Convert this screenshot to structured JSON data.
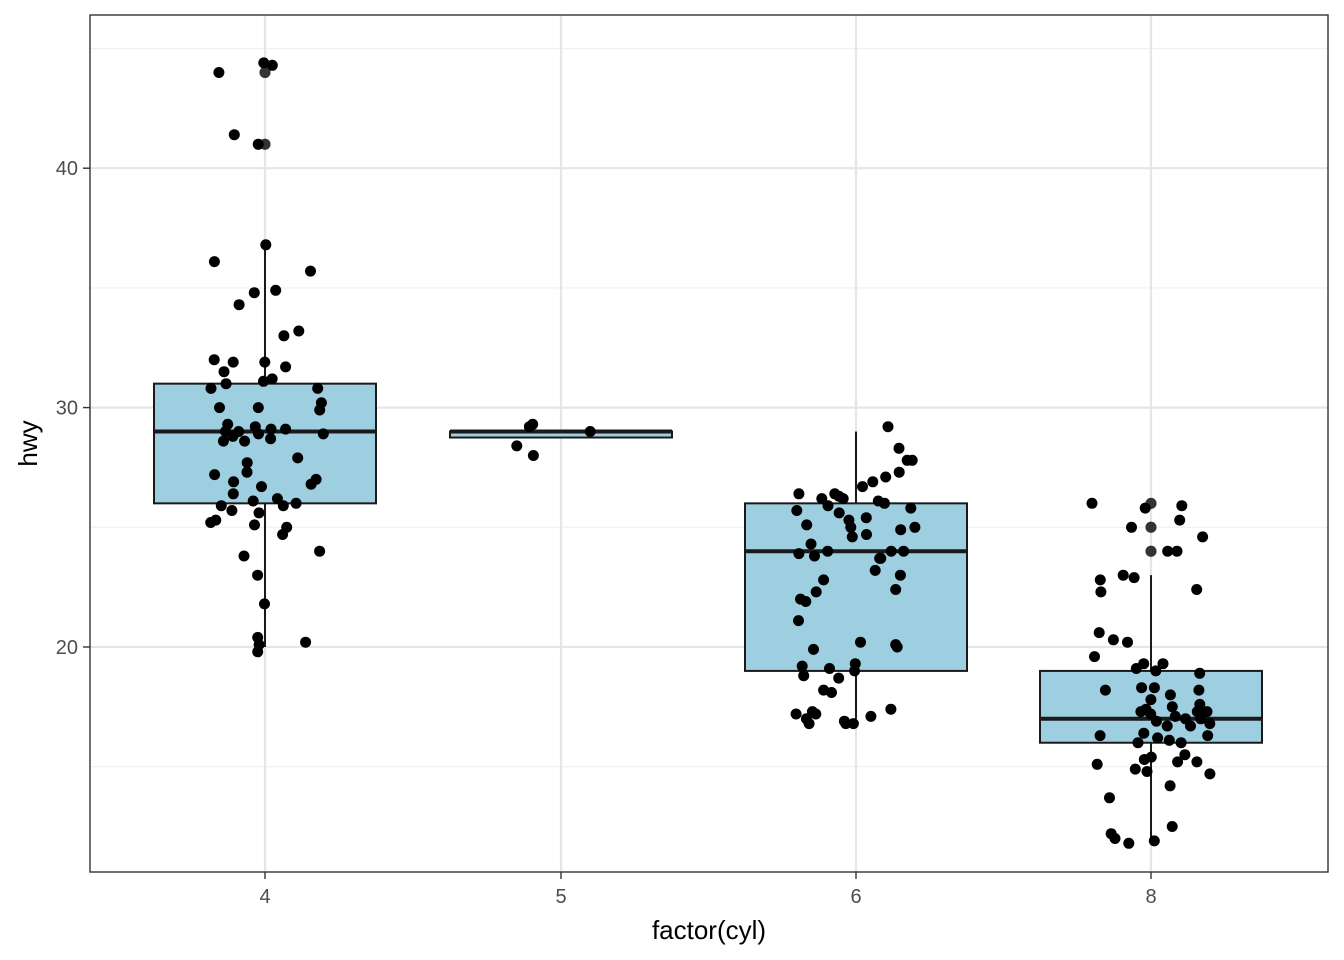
{
  "chart_data": {
    "type": "box",
    "xlabel": "factor(cyl)",
    "ylabel": "hwy",
    "categories": [
      "4",
      "5",
      "6",
      "8"
    ],
    "ylim": [
      10.6,
      46.4
    ],
    "y_ticks": [
      20,
      30,
      40
    ],
    "y_tick_labels": [
      "20",
      "30",
      "40"
    ],
    "grid": true,
    "theme": "bw",
    "colors": {
      "box_fill": "#9ecfe0",
      "box_stroke": "#1a1a1a",
      "point": "#000000",
      "grid_major": "#e5e5e5",
      "grid_minor": "#f0f0f0"
    },
    "boxes": [
      {
        "category": "4",
        "lower_whisker": 20,
        "q1": 26,
        "median": 29,
        "q3": 31,
        "upper_whisker": 37,
        "outliers": [
          44,
          44,
          41,
          41
        ]
      },
      {
        "category": "5",
        "lower_whisker": 28.75,
        "q1": 28.75,
        "median": 29,
        "q3": 29,
        "upper_whisker": 29,
        "outliers": []
      },
      {
        "category": "6",
        "lower_whisker": 17,
        "q1": 19,
        "median": 24,
        "q3": 26,
        "upper_whisker": 29,
        "outliers": []
      },
      {
        "category": "8",
        "lower_whisker": 12,
        "q1": 16,
        "median": 17,
        "q3": 19,
        "upper_whisker": 23,
        "outliers": [
          24,
          25,
          26,
          24,
          25,
          26
        ]
      }
    ],
    "points": [
      {
        "x": "4",
        "y": 44.4
      },
      {
        "x": "4",
        "y": 44.3
      },
      {
        "x": "4",
        "y": 44.0
      },
      {
        "x": "4",
        "y": 41.4
      },
      {
        "x": "4",
        "y": 41.0
      },
      {
        "x": "4",
        "y": 36.8
      },
      {
        "x": "4",
        "y": 36.1
      },
      {
        "x": "4",
        "y": 35.7
      },
      {
        "x": "4",
        "y": 34.9
      },
      {
        "x": "4",
        "y": 34.8
      },
      {
        "x": "4",
        "y": 34.3
      },
      {
        "x": "4",
        "y": 33.2
      },
      {
        "x": "4",
        "y": 33.0
      },
      {
        "x": "4",
        "y": 32.0
      },
      {
        "x": "4",
        "y": 31.9
      },
      {
        "x": "4",
        "y": 31.9
      },
      {
        "x": "4",
        "y": 31.7
      },
      {
        "x": "4",
        "y": 31.5
      },
      {
        "x": "4",
        "y": 31.2
      },
      {
        "x": "4",
        "y": 31.1
      },
      {
        "x": "4",
        "y": 31.0
      },
      {
        "x": "4",
        "y": 30.8
      },
      {
        "x": "4",
        "y": 30.8
      },
      {
        "x": "4",
        "y": 30.2
      },
      {
        "x": "4",
        "y": 30.0
      },
      {
        "x": "4",
        "y": 30.0
      },
      {
        "x": "4",
        "y": 29.9
      },
      {
        "x": "4",
        "y": 29.3
      },
      {
        "x": "4",
        "y": 29.2
      },
      {
        "x": "4",
        "y": 29.1
      },
      {
        "x": "4",
        "y": 29.1
      },
      {
        "x": "4",
        "y": 29.0
      },
      {
        "x": "4",
        "y": 29.0
      },
      {
        "x": "4",
        "y": 28.9
      },
      {
        "x": "4",
        "y": 28.9
      },
      {
        "x": "4",
        "y": 28.8
      },
      {
        "x": "4",
        "y": 28.7
      },
      {
        "x": "4",
        "y": 28.6
      },
      {
        "x": "4",
        "y": 28.6
      },
      {
        "x": "4",
        "y": 27.9
      },
      {
        "x": "4",
        "y": 27.7
      },
      {
        "x": "4",
        "y": 27.3
      },
      {
        "x": "4",
        "y": 27.2
      },
      {
        "x": "4",
        "y": 27.0
      },
      {
        "x": "4",
        "y": 26.9
      },
      {
        "x": "4",
        "y": 26.8
      },
      {
        "x": "4",
        "y": 26.7
      },
      {
        "x": "4",
        "y": 26.4
      },
      {
        "x": "4",
        "y": 26.2
      },
      {
        "x": "4",
        "y": 26.1
      },
      {
        "x": "4",
        "y": 26.0
      },
      {
        "x": "4",
        "y": 25.9
      },
      {
        "x": "4",
        "y": 25.9
      },
      {
        "x": "4",
        "y": 25.7
      },
      {
        "x": "4",
        "y": 25.6
      },
      {
        "x": "4",
        "y": 25.3
      },
      {
        "x": "4",
        "y": 25.2
      },
      {
        "x": "4",
        "y": 25.1
      },
      {
        "x": "4",
        "y": 25.0
      },
      {
        "x": "4",
        "y": 24.7
      },
      {
        "x": "4",
        "y": 24.0
      },
      {
        "x": "4",
        "y": 23.8
      },
      {
        "x": "4",
        "y": 23.0
      },
      {
        "x": "4",
        "y": 21.8
      },
      {
        "x": "4",
        "y": 20.4
      },
      {
        "x": "4",
        "y": 20.2
      },
      {
        "x": "4",
        "y": 20.1
      },
      {
        "x": "4",
        "y": 19.8
      },
      {
        "x": "5",
        "y": 29.3
      },
      {
        "x": "5",
        "y": 29.2
      },
      {
        "x": "5",
        "y": 29.0
      },
      {
        "x": "5",
        "y": 28.4
      },
      {
        "x": "5",
        "y": 28.0
      },
      {
        "x": "6",
        "y": 29.2
      },
      {
        "x": "6",
        "y": 28.3
      },
      {
        "x": "6",
        "y": 27.8
      },
      {
        "x": "6",
        "y": 27.8
      },
      {
        "x": "6",
        "y": 27.3
      },
      {
        "x": "6",
        "y": 27.1
      },
      {
        "x": "6",
        "y": 26.9
      },
      {
        "x": "6",
        "y": 26.7
      },
      {
        "x": "6",
        "y": 26.4
      },
      {
        "x": "6",
        "y": 26.4
      },
      {
        "x": "6",
        "y": 26.3
      },
      {
        "x": "6",
        "y": 26.2
      },
      {
        "x": "6",
        "y": 26.2
      },
      {
        "x": "6",
        "y": 26.1
      },
      {
        "x": "6",
        "y": 26.0
      },
      {
        "x": "6",
        "y": 25.9
      },
      {
        "x": "6",
        "y": 25.8
      },
      {
        "x": "6",
        "y": 25.7
      },
      {
        "x": "6",
        "y": 25.6
      },
      {
        "x": "6",
        "y": 25.4
      },
      {
        "x": "6",
        "y": 25.3
      },
      {
        "x": "6",
        "y": 25.1
      },
      {
        "x": "6",
        "y": 25.0
      },
      {
        "x": "6",
        "y": 25.0
      },
      {
        "x": "6",
        "y": 24.9
      },
      {
        "x": "6",
        "y": 24.7
      },
      {
        "x": "6",
        "y": 24.6
      },
      {
        "x": "6",
        "y": 24.3
      },
      {
        "x": "6",
        "y": 24.0
      },
      {
        "x": "6",
        "y": 24.0
      },
      {
        "x": "6",
        "y": 24.0
      },
      {
        "x": "6",
        "y": 23.9
      },
      {
        "x": "6",
        "y": 23.8
      },
      {
        "x": "6",
        "y": 23.7
      },
      {
        "x": "6",
        "y": 23.7
      },
      {
        "x": "6",
        "y": 23.2
      },
      {
        "x": "6",
        "y": 23.0
      },
      {
        "x": "6",
        "y": 22.8
      },
      {
        "x": "6",
        "y": 22.4
      },
      {
        "x": "6",
        "y": 22.3
      },
      {
        "x": "6",
        "y": 22.0
      },
      {
        "x": "6",
        "y": 21.9
      },
      {
        "x": "6",
        "y": 21.1
      },
      {
        "x": "6",
        "y": 20.2
      },
      {
        "x": "6",
        "y": 20.1
      },
      {
        "x": "6",
        "y": 20.0
      },
      {
        "x": "6",
        "y": 19.9
      },
      {
        "x": "6",
        "y": 19.3
      },
      {
        "x": "6",
        "y": 19.2
      },
      {
        "x": "6",
        "y": 19.1
      },
      {
        "x": "6",
        "y": 19.0
      },
      {
        "x": "6",
        "y": 18.8
      },
      {
        "x": "6",
        "y": 18.7
      },
      {
        "x": "6",
        "y": 18.2
      },
      {
        "x": "6",
        "y": 18.1
      },
      {
        "x": "6",
        "y": 17.4
      },
      {
        "x": "6",
        "y": 17.3
      },
      {
        "x": "6",
        "y": 17.2
      },
      {
        "x": "6",
        "y": 17.2
      },
      {
        "x": "6",
        "y": 17.1
      },
      {
        "x": "6",
        "y": 17.0
      },
      {
        "x": "6",
        "y": 16.9
      },
      {
        "x": "6",
        "y": 16.8
      },
      {
        "x": "6",
        "y": 16.8
      },
      {
        "x": "6",
        "y": 16.8
      },
      {
        "x": "8",
        "y": 26.0
      },
      {
        "x": "8",
        "y": 25.9
      },
      {
        "x": "8",
        "y": 25.8
      },
      {
        "x": "8",
        "y": 25.3
      },
      {
        "x": "8",
        "y": 25.0
      },
      {
        "x": "8",
        "y": 24.6
      },
      {
        "x": "8",
        "y": 24.0
      },
      {
        "x": "8",
        "y": 24.0
      },
      {
        "x": "8",
        "y": 23.0
      },
      {
        "x": "8",
        "y": 22.9
      },
      {
        "x": "8",
        "y": 22.8
      },
      {
        "x": "8",
        "y": 22.4
      },
      {
        "x": "8",
        "y": 22.3
      },
      {
        "x": "8",
        "y": 20.6
      },
      {
        "x": "8",
        "y": 20.3
      },
      {
        "x": "8",
        "y": 20.2
      },
      {
        "x": "8",
        "y": 19.6
      },
      {
        "x": "8",
        "y": 19.3
      },
      {
        "x": "8",
        "y": 19.3
      },
      {
        "x": "8",
        "y": 19.1
      },
      {
        "x": "8",
        "y": 19.0
      },
      {
        "x": "8",
        "y": 18.9
      },
      {
        "x": "8",
        "y": 18.3
      },
      {
        "x": "8",
        "y": 18.3
      },
      {
        "x": "8",
        "y": 18.2
      },
      {
        "x": "8",
        "y": 18.2
      },
      {
        "x": "8",
        "y": 18.0
      },
      {
        "x": "8",
        "y": 17.8
      },
      {
        "x": "8",
        "y": 17.6
      },
      {
        "x": "8",
        "y": 17.5
      },
      {
        "x": "8",
        "y": 17.4
      },
      {
        "x": "8",
        "y": 17.3
      },
      {
        "x": "8",
        "y": 17.3
      },
      {
        "x": "8",
        "y": 17.3
      },
      {
        "x": "8",
        "y": 17.2
      },
      {
        "x": "8",
        "y": 17.1
      },
      {
        "x": "8",
        "y": 17.0
      },
      {
        "x": "8",
        "y": 17.0
      },
      {
        "x": "8",
        "y": 16.9
      },
      {
        "x": "8",
        "y": 16.8
      },
      {
        "x": "8",
        "y": 16.7
      },
      {
        "x": "8",
        "y": 16.7
      },
      {
        "x": "8",
        "y": 16.4
      },
      {
        "x": "8",
        "y": 16.3
      },
      {
        "x": "8",
        "y": 16.3
      },
      {
        "x": "8",
        "y": 16.2
      },
      {
        "x": "8",
        "y": 16.1
      },
      {
        "x": "8",
        "y": 16.0
      },
      {
        "x": "8",
        "y": 16.0
      },
      {
        "x": "8",
        "y": 15.5
      },
      {
        "x": "8",
        "y": 15.4
      },
      {
        "x": "8",
        "y": 15.3
      },
      {
        "x": "8",
        "y": 15.2
      },
      {
        "x": "8",
        "y": 15.2
      },
      {
        "x": "8",
        "y": 15.1
      },
      {
        "x": "8",
        "y": 14.9
      },
      {
        "x": "8",
        "y": 14.8
      },
      {
        "x": "8",
        "y": 14.7
      },
      {
        "x": "8",
        "y": 14.2
      },
      {
        "x": "8",
        "y": 13.7
      },
      {
        "x": "8",
        "y": 12.5
      },
      {
        "x": "8",
        "y": 12.2
      },
      {
        "x": "8",
        "y": 12.0
      },
      {
        "x": "8",
        "y": 11.9
      },
      {
        "x": "8",
        "y": 11.8
      }
    ]
  }
}
